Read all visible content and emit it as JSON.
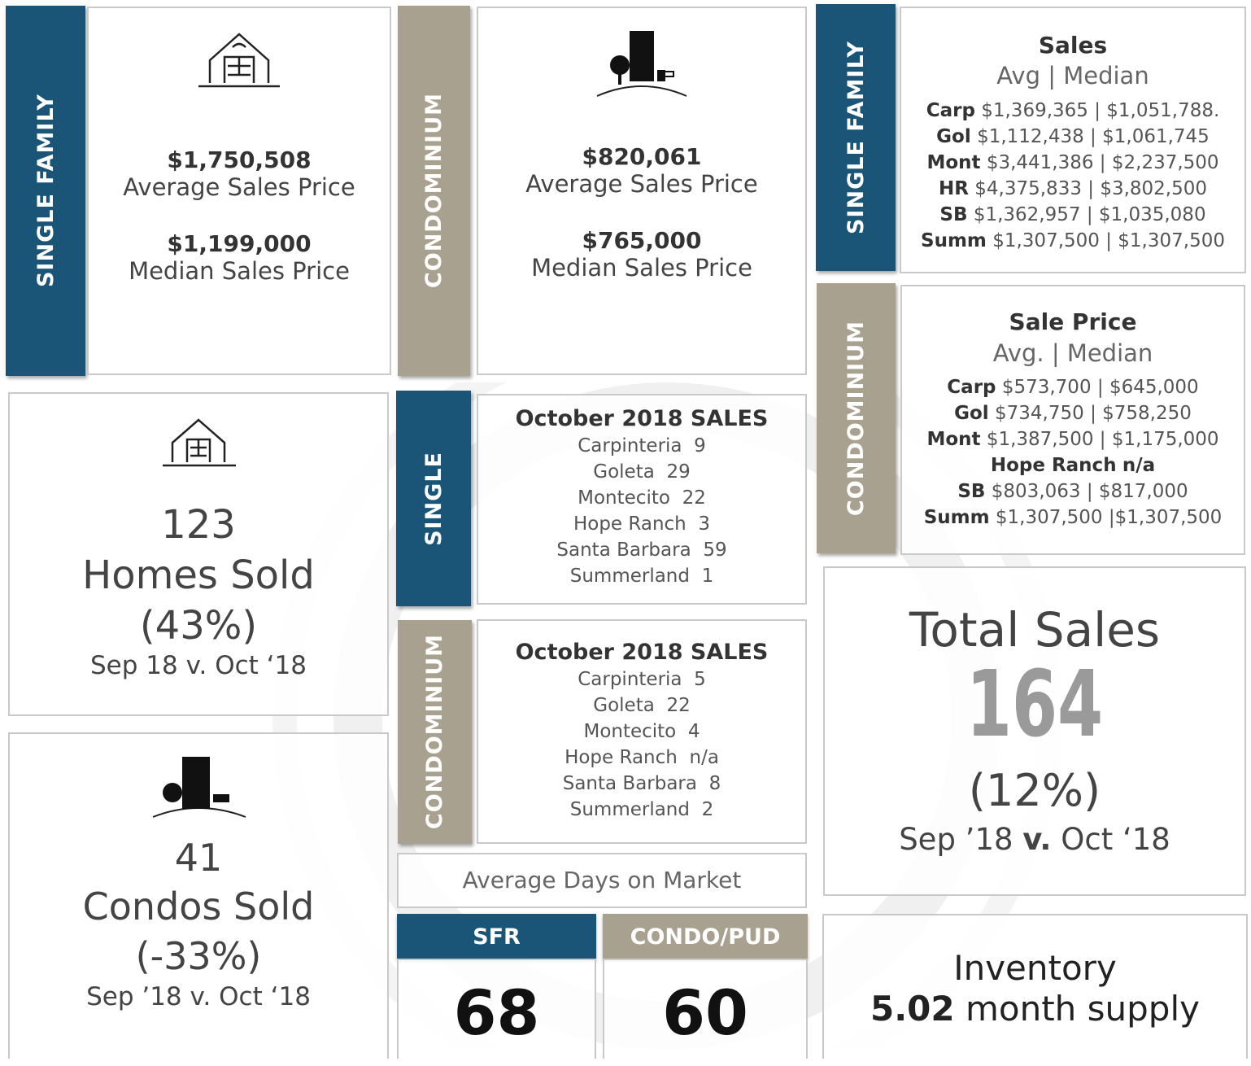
{
  "sf_summary": {
    "tab": "SINGLE FAMILY",
    "avg_price": "$1,750,508",
    "avg_label": "Average Sales Price",
    "median_price": "$1,199,000",
    "median_label": "Median Sales Price"
  },
  "condo_summary": {
    "tab": "CONDOMINIUM",
    "avg_price": "$820,061",
    "avg_label": "Average Sales Price",
    "median_price": "$765,000",
    "median_label": "Median Sales Price"
  },
  "homes_sold": {
    "count": "123",
    "label": "Homes Sold",
    "change": "(43%)",
    "period": "Sep 18 v. Oct ‘18"
  },
  "condos_sold": {
    "count": "41",
    "label": "Condos Sold",
    "change": "(-33%)",
    "period": "Sep ’18 v. Oct ‘18"
  },
  "single_sales": {
    "tab": "SINGLE",
    "title": "October 2018 SALES",
    "rows": [
      {
        "area": "Carpinteria",
        "count": "9"
      },
      {
        "area": "Goleta",
        "count": "29"
      },
      {
        "area": "Montecito",
        "count": "22"
      },
      {
        "area": "Hope Ranch",
        "count": "3"
      },
      {
        "area": "Santa Barbara",
        "count": "59"
      },
      {
        "area": "Summerland",
        "count": "1"
      }
    ]
  },
  "condo_sales": {
    "tab": "CONDOMINIUM",
    "title": "October 2018 SALES",
    "rows": [
      {
        "area": "Carpinteria",
        "count": "5"
      },
      {
        "area": "Goleta",
        "count": "22"
      },
      {
        "area": "Montecito",
        "count": "4"
      },
      {
        "area": "Hope Ranch",
        "count": "n/a"
      },
      {
        "area": "Santa Barbara",
        "count": "8"
      },
      {
        "area": "Summerland",
        "count": "2"
      }
    ]
  },
  "days_on_market": {
    "title": "Average Days on Market",
    "sfr_label": "SFR",
    "sfr_value": "68",
    "condo_label": "CONDO/PUD",
    "condo_value": "60"
  },
  "sf_prices": {
    "tab": "SINGLE FAMILY",
    "title": "Sales",
    "subtitle": "Avg | Median",
    "rows": [
      {
        "area": "Carp",
        "values": "$1,369,365 | $1,051,788."
      },
      {
        "area": "Gol",
        "values": "$1,112,438 | $1,061,745"
      },
      {
        "area": "Mont",
        "values": "$3,441,386 | $2,237,500"
      },
      {
        "area": "HR",
        "values": "$4,375,833 | $3,802,500"
      },
      {
        "area": "SB",
        "values": "$1,362,957 | $1,035,080"
      },
      {
        "area": "Summ",
        "values": "$1,307,500 | $1,307,500"
      }
    ]
  },
  "condo_prices": {
    "tab": "CONDOMINIUM",
    "title": "Sale Price",
    "subtitle": "Avg. | Median",
    "rows": [
      {
        "area": "Carp",
        "values": "$573,700 | $645,000"
      },
      {
        "area": "Gol",
        "values": "$734,750 | $758,250"
      },
      {
        "area": "Mont",
        "values": "$1,387,500 | $1,175,000"
      },
      {
        "area": "Hope Ranch",
        "values": "n/a"
      },
      {
        "area": "SB",
        "values": "$803,063 | $817,000"
      },
      {
        "area": "Summ",
        "values": "$1,307,500 |$1,307,500"
      }
    ]
  },
  "total_sales": {
    "title": "Total Sales",
    "count": "164",
    "change": "(12%)",
    "period_start": "Sep ’18",
    "versus": "v.",
    "period_end": "Oct ‘18"
  },
  "inventory": {
    "title": "Inventory",
    "value": "5.02",
    "label": "month supply"
  }
}
